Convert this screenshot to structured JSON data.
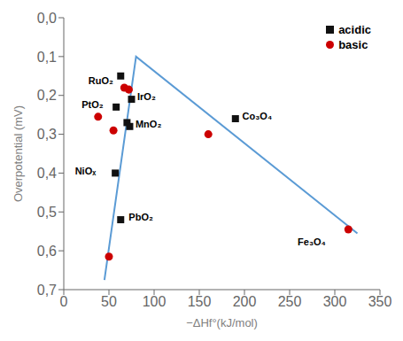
{
  "chart_data": {
    "type": "scatter",
    "xlabel": "−ΔHf°(kJ/mol)",
    "ylabel": "Overpotential (mV)",
    "series": [
      {
        "name": "acidic",
        "type": "scatter",
        "marker": "square",
        "color": "#111111",
        "x": [
          63,
          58,
          70,
          75,
          73,
          57,
          63,
          190
        ],
        "values": [
          0.15,
          0.23,
          0.27,
          0.21,
          0.28,
          0.4,
          0.52,
          0.26
        ]
      },
      {
        "name": "basic",
        "type": "scatter",
        "marker": "circle",
        "color": "#cc0000",
        "x": [
          67,
          72,
          38,
          55,
          50,
          160,
          315
        ],
        "values": [
          0.18,
          0.185,
          0.255,
          0.29,
          0.615,
          0.3,
          0.545
        ]
      },
      {
        "type": "line",
        "color": "#5b9bd5",
        "x": [
          45,
          80,
          325
        ],
        "values": [
          0.675,
          0.1,
          0.555
        ]
      }
    ],
    "annotations": [
      {
        "x": 63,
        "y": 0.15,
        "text": "RuO₂"
      },
      {
        "x": 58,
        "y": 0.23,
        "text": "PtO₂"
      },
      {
        "x": 75,
        "y": 0.21,
        "text": "IrO₂"
      },
      {
        "x": 73,
        "y": 0.28,
        "text": "MnO₂"
      },
      {
        "x": 57,
        "y": 0.4,
        "text": "NiOₓ"
      },
      {
        "x": 63,
        "y": 0.52,
        "text": "PbO₂"
      },
      {
        "x": 190,
        "y": 0.26,
        "text": "Co₃O₄"
      },
      {
        "x": 315,
        "y": 0.545,
        "text": "Fe₃O₄"
      }
    ],
    "xlim": [
      0,
      350
    ],
    "ylim": [
      0.7,
      0.0
    ],
    "xticks": [
      0,
      50,
      100,
      150,
      200,
      250,
      300,
      350
    ],
    "yticks": [
      {
        "value": 0.0,
        "label": "0,0"
      },
      {
        "value": 0.1,
        "label": "0,1"
      },
      {
        "value": 0.2,
        "label": "0,2"
      },
      {
        "value": 0.3,
        "label": "0,3"
      },
      {
        "value": 0.4,
        "label": "0,4"
      },
      {
        "value": 0.5,
        "label": "0,5"
      },
      {
        "value": 0.6,
        "label": "0,6"
      },
      {
        "value": 0.7,
        "label": "0,7"
      }
    ],
    "grid": false,
    "legend": "upper right"
  }
}
